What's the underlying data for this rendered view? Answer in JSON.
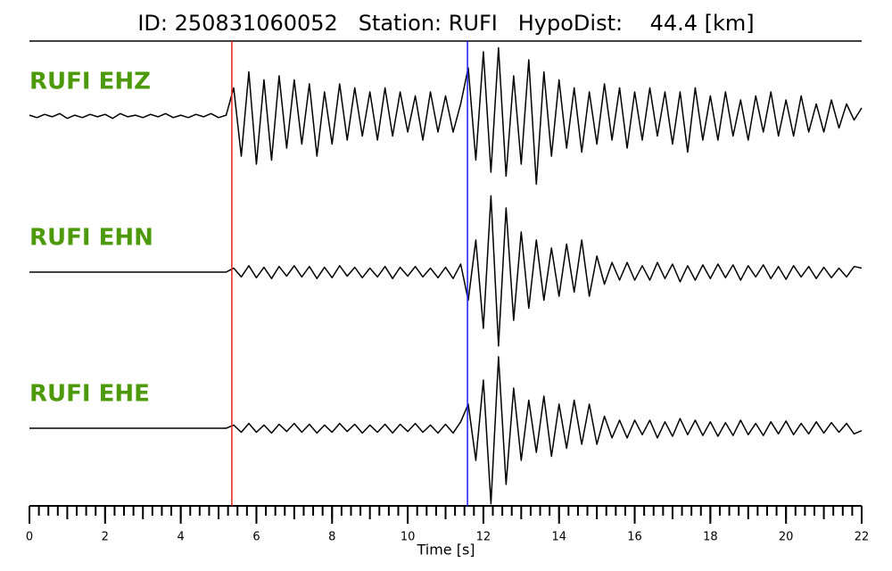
{
  "chart_data": {
    "type": "seismogram",
    "title": "ID: 250831060052   Station: RUFI   HypoDist:    44.4 [km]",
    "xlabel": "Time [s]",
    "xlim": [
      0,
      22
    ],
    "xticks": [
      0,
      2,
      4,
      6,
      8,
      10,
      12,
      14,
      16,
      18,
      20,
      22
    ],
    "xminorticks": [
      0,
      0.25,
      0.5,
      0.75,
      1,
      1.25,
      1.5,
      1.75,
      2,
      2.25,
      2.5,
      2.75,
      3,
      3.25,
      3.5,
      3.75,
      4,
      4.25,
      4.5,
      4.75,
      5,
      5.25,
      5.5,
      5.75,
      6,
      6.25,
      6.5,
      6.75,
      7,
      7.25,
      7.5,
      7.75,
      8,
      8.25,
      8.5,
      8.75,
      9,
      9.25,
      9.5,
      9.75,
      10,
      10.25,
      10.5,
      10.75,
      11,
      11.25,
      11.5,
      11.75,
      12,
      12.25,
      12.5,
      12.75,
      13,
      13.25,
      13.5,
      13.75,
      14,
      14.25,
      14.5,
      14.75,
      15,
      15.25,
      15.5,
      15.75,
      16,
      16.25,
      16.5,
      16.75,
      17,
      17.25,
      17.5,
      17.75,
      18,
      18.25,
      18.5,
      18.75,
      19,
      19.25,
      19.5,
      19.75,
      20,
      20.25,
      20.5,
      20.75,
      21,
      21.25,
      21.5,
      21.75,
      22
    ],
    "ylim": [
      -1,
      1
    ],
    "label_color": "#4c9a0a",
    "markers": [
      {
        "x": 5.35,
        "color": "#e8231b"
      },
      {
        "x": 11.58,
        "color": "#1a1aff"
      }
    ],
    "x": [
      0,
      0.2,
      0.4,
      0.6,
      0.8,
      1,
      1.2,
      1.4,
      1.6,
      1.8,
      2,
      2.2,
      2.4,
      2.6,
      2.8,
      3,
      3.2,
      3.4,
      3.6,
      3.8,
      4,
      4.2,
      4.4,
      4.6,
      4.8,
      5,
      5.2,
      5.4,
      5.6,
      5.8,
      6,
      6.2,
      6.4,
      6.6,
      6.8,
      7,
      7.2,
      7.4,
      7.6,
      7.8,
      8,
      8.2,
      8.4,
      8.6,
      8.8,
      9,
      9.2,
      9.4,
      9.6,
      9.8,
      10,
      10.2,
      10.4,
      10.6,
      10.8,
      11,
      11.2,
      11.4,
      11.6,
      11.8,
      12,
      12.2,
      12.4,
      12.6,
      12.8,
      13,
      13.2,
      13.4,
      13.6,
      13.8,
      14,
      14.2,
      14.4,
      14.6,
      14.8,
      15,
      15.2,
      15.4,
      15.6,
      15.8,
      16,
      16.2,
      16.4,
      16.6,
      16.8,
      17,
      17.2,
      17.4,
      17.6,
      17.8,
      18,
      18.2,
      18.4,
      18.6,
      18.8,
      19,
      19.2,
      19.4,
      19.6,
      19.8,
      20,
      20.2,
      20.4,
      20.6,
      20.8,
      21,
      21.2,
      21.4,
      21.6,
      21.8,
      22
    ],
    "series": [
      {
        "name": "RUFI EHZ",
        "color": "#000000",
        "values": [
          0.01,
          -0.02,
          0.02,
          -0.01,
          0.03,
          -0.03,
          0.01,
          -0.02,
          0.02,
          -0.01,
          0.02,
          -0.03,
          0.03,
          -0.01,
          0.01,
          -0.02,
          0.02,
          -0.01,
          0.03,
          -0.02,
          0.01,
          -0.02,
          0.02,
          -0.01,
          0.03,
          -0.02,
          0.01,
          0.35,
          -0.5,
          0.55,
          -0.6,
          0.45,
          -0.55,
          0.5,
          -0.4,
          0.45,
          -0.35,
          0.4,
          -0.5,
          0.3,
          -0.35,
          0.4,
          -0.3,
          0.35,
          -0.25,
          0.3,
          -0.3,
          0.35,
          -0.25,
          0.3,
          -0.2,
          0.25,
          -0.3,
          0.3,
          -0.2,
          0.25,
          -0.2,
          0.15,
          0.6,
          -0.55,
          0.8,
          -0.7,
          0.85,
          -0.75,
          0.5,
          -0.6,
          0.7,
          -0.85,
          0.55,
          -0.5,
          0.45,
          -0.4,
          0.35,
          -0.45,
          0.3,
          -0.35,
          0.4,
          -0.3,
          0.35,
          -0.4,
          0.3,
          -0.3,
          0.35,
          -0.25,
          0.3,
          -0.35,
          0.3,
          -0.45,
          0.35,
          -0.3,
          0.25,
          -0.3,
          0.3,
          -0.25,
          0.2,
          -0.3,
          0.25,
          -0.2,
          0.3,
          -0.25,
          0.2,
          -0.25,
          0.25,
          -0.2,
          0.15,
          -0.2,
          0.2,
          -0.15,
          0.15,
          -0.05,
          0.1
        ]
      },
      {
        "name": "RUFI EHN",
        "color": "#000000",
        "values": [
          0,
          0,
          0,
          0,
          0,
          0,
          0,
          0,
          0,
          0,
          0,
          0,
          0,
          0,
          0,
          0,
          0,
          0,
          0,
          0,
          0,
          0,
          0,
          0,
          0,
          0,
          0,
          0.05,
          -0.06,
          0.08,
          -0.07,
          0.06,
          -0.08,
          0.07,
          -0.05,
          0.08,
          -0.06,
          0.07,
          -0.08,
          0.06,
          -0.07,
          0.08,
          -0.05,
          0.06,
          -0.07,
          0.05,
          -0.06,
          0.07,
          -0.08,
          0.06,
          -0.05,
          0.07,
          -0.06,
          0.05,
          -0.07,
          0.06,
          -0.08,
          0.1,
          -0.35,
          0.4,
          -0.7,
          0.95,
          -0.92,
          0.8,
          -0.6,
          0.5,
          -0.45,
          0.4,
          -0.35,
          0.3,
          -0.3,
          0.35,
          -0.25,
          0.4,
          -0.3,
          0.2,
          -0.15,
          0.12,
          -0.1,
          0.12,
          -0.1,
          0.08,
          -0.1,
          0.12,
          -0.08,
          0.1,
          -0.12,
          0.08,
          -0.1,
          0.09,
          -0.08,
          0.1,
          -0.07,
          0.09,
          -0.1,
          0.08,
          -0.06,
          0.09,
          -0.08,
          0.07,
          -0.09,
          0.08,
          -0.06,
          0.07,
          -0.08,
          0.06,
          -0.07,
          0.05,
          -0.06,
          0.07,
          0.05
        ]
      },
      {
        "name": "RUFI EHE",
        "color": "#000000",
        "values": [
          0,
          0,
          0,
          0,
          0,
          0,
          0,
          0,
          0,
          0,
          0,
          0,
          0,
          0,
          0,
          0,
          0,
          0,
          0,
          0,
          0,
          0,
          0,
          0,
          0,
          0,
          0,
          0.04,
          -0.05,
          0.06,
          -0.05,
          0.04,
          -0.06,
          0.05,
          -0.04,
          0.06,
          -0.05,
          0.05,
          -0.06,
          0.04,
          -0.05,
          0.06,
          -0.04,
          0.05,
          -0.06,
          0.04,
          -0.05,
          0.05,
          -0.06,
          0.05,
          -0.04,
          0.06,
          -0.05,
          0.04,
          -0.06,
          0.05,
          -0.06,
          0.08,
          0.3,
          -0.4,
          0.6,
          -0.94,
          0.89,
          -0.7,
          0.5,
          -0.4,
          0.35,
          -0.3,
          0.4,
          -0.35,
          0.3,
          -0.25,
          0.35,
          -0.2,
          0.3,
          -0.2,
          0.15,
          -0.12,
          0.1,
          -0.12,
          0.1,
          -0.08,
          0.1,
          -0.12,
          0.08,
          -0.1,
          0.12,
          -0.08,
          0.1,
          -0.09,
          0.08,
          -0.1,
          0.07,
          -0.09,
          0.1,
          -0.08,
          0.06,
          -0.09,
          0.08,
          -0.07,
          0.09,
          -0.08,
          0.06,
          -0.07,
          0.08,
          -0.06,
          0.07,
          -0.05,
          0.06,
          -0.07,
          -0.03
        ]
      }
    ]
  }
}
